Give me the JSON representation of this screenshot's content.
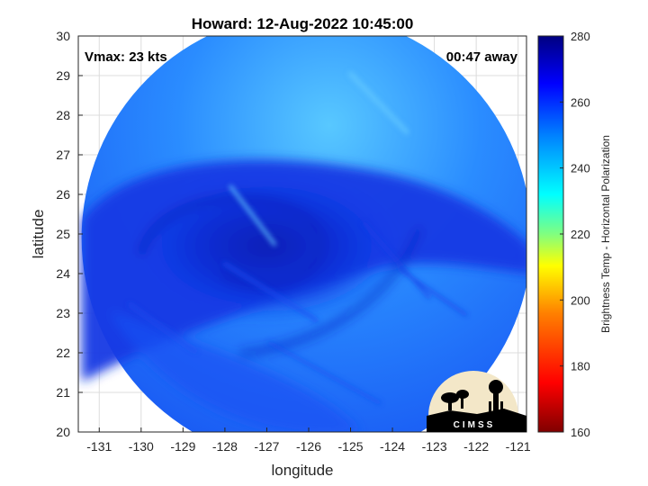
{
  "title": "Howard: 12-Aug-2022 10:45:00",
  "annotations": {
    "vmax": "Vmax: 23 kts",
    "time_away": "00:47 away"
  },
  "axes": {
    "xlabel": "longitude",
    "ylabel": "latitude",
    "xlim": [
      -131.5,
      -120.8
    ],
    "ylim": [
      20,
      30
    ],
    "xticks": [
      -131,
      -130,
      -129,
      -128,
      -127,
      -126,
      -125,
      -124,
      -123,
      -122,
      -121
    ],
    "yticks": [
      20,
      21,
      22,
      23,
      24,
      25,
      26,
      27,
      28,
      29,
      30
    ],
    "grid": true
  },
  "colorbar": {
    "label": "Brightness Temp - Horizontal Polarization",
    "range": [
      160,
      280
    ],
    "ticks": [
      160,
      180,
      200,
      220,
      240,
      260,
      280
    ],
    "colormap": "jet",
    "colors": [
      "#800000",
      "#ff0000",
      "#ff8000",
      "#ffff00",
      "#80ff80",
      "#00ffff",
      "#0080ff",
      "#0000ff",
      "#000080"
    ]
  },
  "image": {
    "swath_center": [
      -126.05,
      24.9
    ],
    "storm_center": [
      -127.0,
      24.7
    ],
    "colors": {
      "low": "#0a1ec8",
      "mid": "#1f5fff",
      "high": "#3fb4ff"
    }
  },
  "logo": {
    "text": "CIMSS"
  }
}
